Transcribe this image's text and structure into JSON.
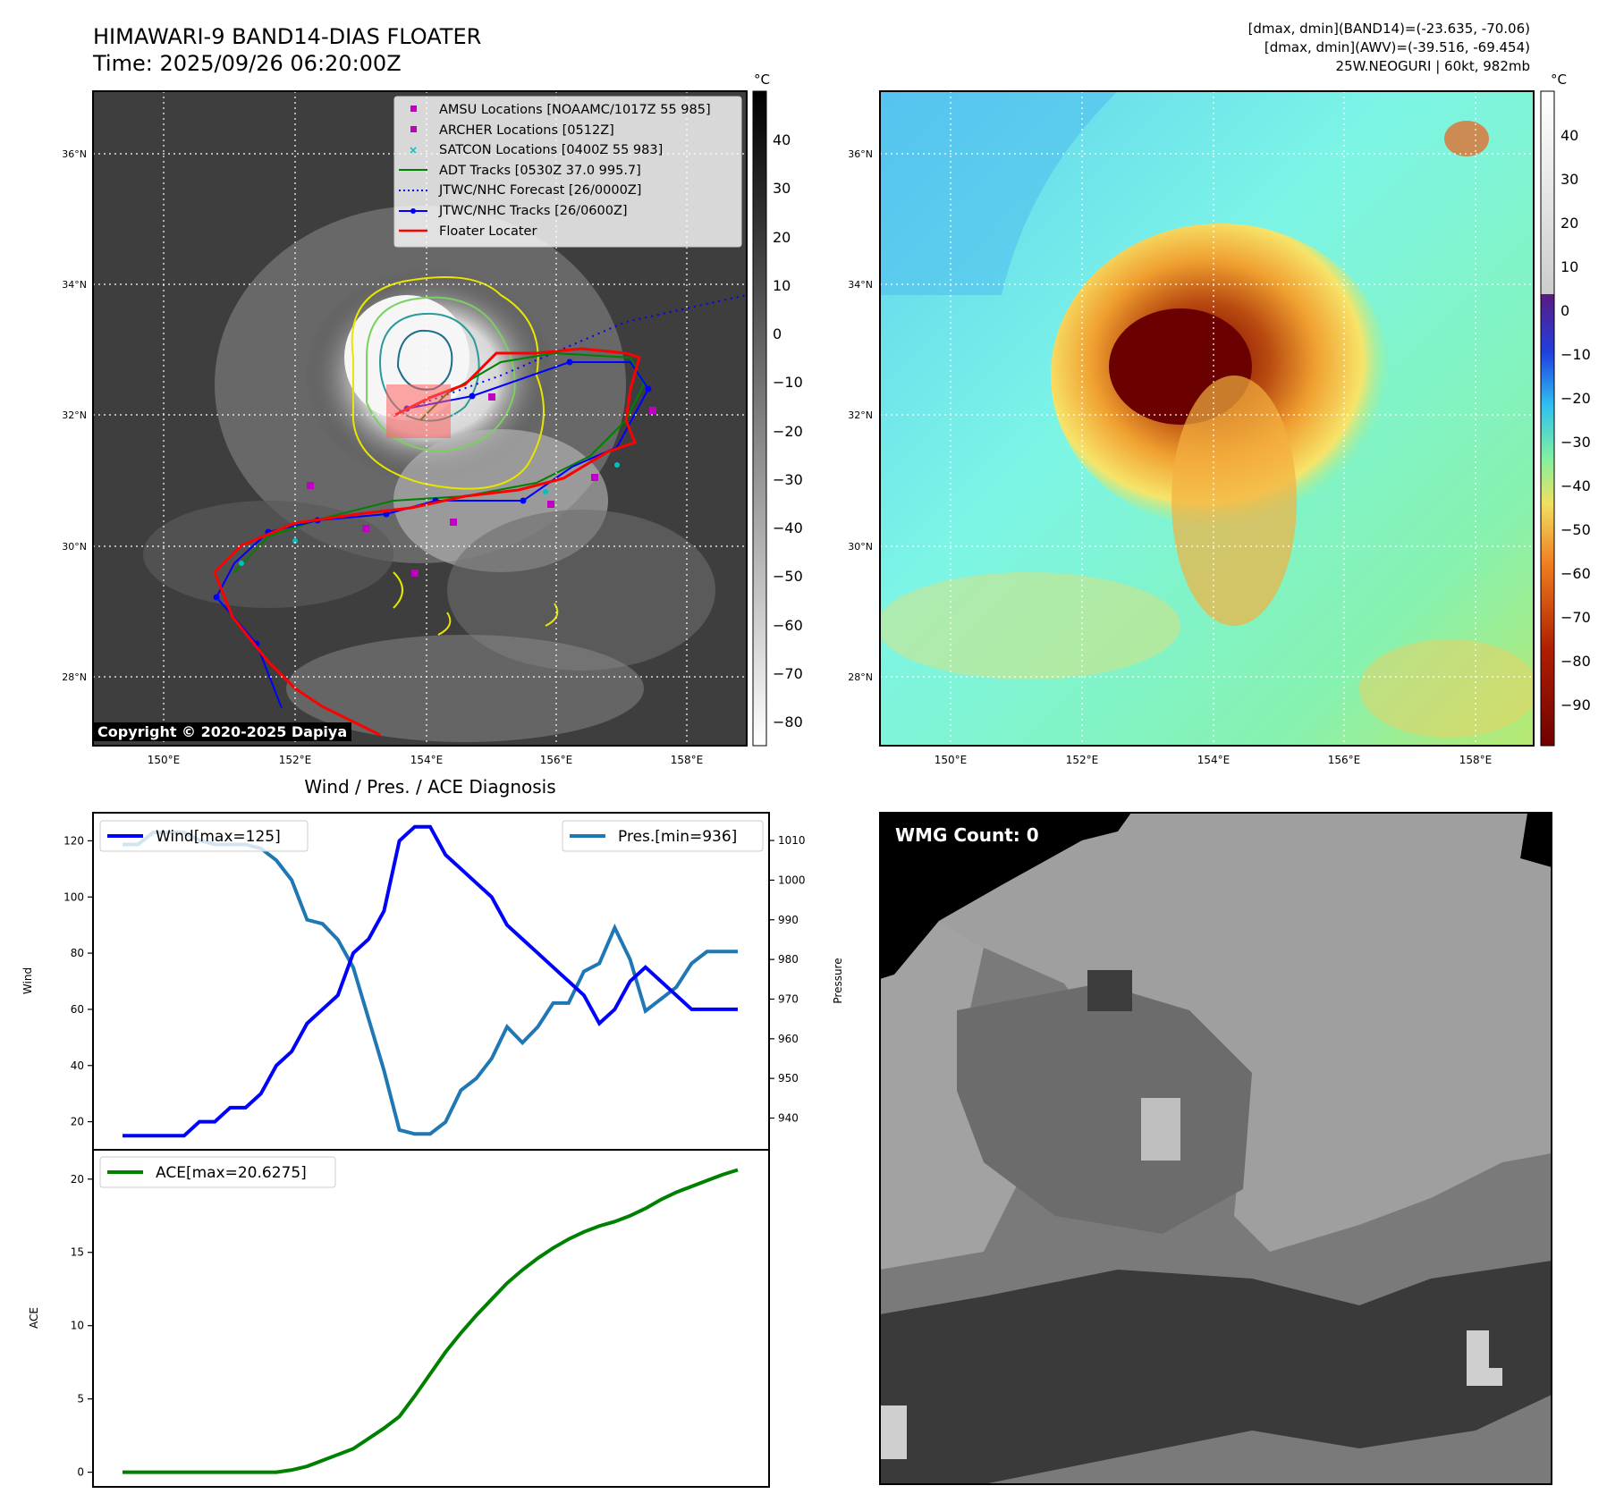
{
  "header": {
    "title_line1": "HIMAWARI-9 BAND14-DIAS FLOATER",
    "title_line2": "Time: 2025/09/26 06:20:00Z",
    "info_line1": "[dmax, dmin](BAND14)=(-23.635, -70.06)",
    "info_line2": "[dmax, dmin](AWV)=(-39.516, -69.454)",
    "info_line3": "25W.NEOGURI | 60kt, 982mb"
  },
  "copyright": "Copyright © 2020-2025 Dapiya",
  "map_axes": {
    "lat_ticks": [
      "36°N",
      "34°N",
      "32°N",
      "30°N",
      "28°N"
    ],
    "lon_ticks": [
      "150°E",
      "152°E",
      "154°E",
      "156°E",
      "158°E"
    ]
  },
  "colorbar_ir": {
    "unit": "°C",
    "ticks": [
      "40",
      "30",
      "20",
      "10",
      "0",
      "−10",
      "−20",
      "−30",
      "−40",
      "−50",
      "−60",
      "−70",
      "−80"
    ]
  },
  "colorbar_wv": {
    "unit": "°C",
    "ticks": [
      "40",
      "30",
      "20",
      "10",
      "0",
      "−10",
      "−20",
      "−30",
      "−40",
      "−50",
      "−60",
      "−70",
      "−80",
      "−90"
    ]
  },
  "legend": {
    "items": [
      {
        "label": "AMSU Locations [NOAAMC/1017Z 55 985]",
        "color": "#c000c0",
        "marker": "square"
      },
      {
        "label": "ARCHER Locations [0512Z]",
        "color": "#c000c0",
        "marker": "square"
      },
      {
        "label": "SATCON Locations [0400Z 55 983]",
        "color": "#00c0c0",
        "marker": "x"
      },
      {
        "label": "ADT Tracks [0530Z 37.0 995.7]",
        "color": "#008000",
        "marker": "line"
      },
      {
        "label": "JTWC/NHC Forecast [26/0000Z]",
        "color": "#0000ff",
        "marker": "dotted"
      },
      {
        "label": "JTWC/NHC Tracks [26/0600Z]",
        "color": "#0000ff",
        "marker": "line-dot"
      },
      {
        "label": "Floater Locater",
        "color": "#ff0000",
        "marker": "line"
      }
    ]
  },
  "diagnosis": {
    "title": "Wind / Pres. / ACE Diagnosis",
    "wind_label": "Wind",
    "pres_label": "Pressure",
    "ace_label": "ACE",
    "wind_legend": "Wind[max=125]",
    "pres_legend": "Pres.[min=936]",
    "ace_legend": "ACE[max=20.6275]",
    "wind_ticks": [
      "20",
      "40",
      "60",
      "80",
      "100",
      "120"
    ],
    "pres_ticks": [
      "940",
      "950",
      "960",
      "970",
      "980",
      "990",
      "1000",
      "1010"
    ],
    "ace_ticks": [
      "0",
      "5",
      "10",
      "15",
      "20"
    ],
    "wind_color": "#0000ff",
    "pres_color": "#1f77b4",
    "ace_color": "#008000"
  },
  "wmg_label": "WMG Count: 0",
  "chart_data": [
    {
      "type": "line",
      "title": "Wind / Pres. / ACE Diagnosis",
      "ylabel": "Wind",
      "ylim": [
        10,
        130
      ],
      "x": [
        0,
        1,
        2,
        3,
        4,
        5,
        6,
        7,
        8,
        9,
        10,
        11,
        12,
        13,
        14,
        15,
        16,
        17,
        18,
        19,
        20,
        21,
        22,
        23,
        24,
        25,
        26,
        27,
        28,
        29,
        30,
        31,
        32,
        33,
        34,
        35,
        36,
        37,
        38,
        39,
        40
      ],
      "series": [
        {
          "name": "Wind[max=125]",
          "values": [
            15,
            15,
            15,
            15,
            15,
            20,
            20,
            25,
            25,
            30,
            40,
            45,
            55,
            60,
            65,
            80,
            85,
            95,
            120,
            125,
            125,
            115,
            110,
            105,
            100,
            90,
            85,
            80,
            75,
            70,
            65,
            55,
            60,
            70,
            75,
            70,
            65,
            60,
            60,
            60,
            60
          ]
        },
        {
          "name": "Pres.[min=936]",
          "axis": "right",
          "ylim": [
            932,
            1017
          ],
          "values": [
            1009,
            1009,
            1012,
            1012,
            1012,
            1010,
            1009,
            1009,
            1009,
            1008,
            1005,
            1000,
            990,
            989,
            985,
            978,
            965,
            952,
            937,
            936,
            936,
            939,
            947,
            950,
            955,
            963,
            959,
            963,
            969,
            969,
            977,
            979,
            988,
            980,
            967,
            970,
            973,
            979,
            982,
            982,
            982
          ]
        }
      ]
    },
    {
      "type": "line",
      "ylabel": "ACE",
      "ylim": [
        -1,
        22
      ],
      "x": [
        0,
        1,
        2,
        3,
        4,
        5,
        6,
        7,
        8,
        9,
        10,
        11,
        12,
        13,
        14,
        15,
        16,
        17,
        18,
        19,
        20,
        21,
        22,
        23,
        24,
        25,
        26,
        27,
        28,
        29,
        30,
        31,
        32,
        33,
        34,
        35,
        36,
        37,
        38,
        39,
        40
      ],
      "series": [
        {
          "name": "ACE[max=20.6275]",
          "values": [
            0,
            0,
            0,
            0,
            0,
            0,
            0,
            0,
            0,
            0,
            0,
            0.15,
            0.4,
            0.8,
            1.2,
            1.6,
            2.3,
            3.0,
            3.8,
            5.2,
            6.7,
            8.2,
            9.5,
            10.7,
            11.8,
            12.9,
            13.8,
            14.6,
            15.3,
            15.9,
            16.4,
            16.8,
            17.1,
            17.5,
            18.0,
            18.6,
            19.1,
            19.5,
            19.9,
            20.3,
            20.6275
          ]
        }
      ]
    }
  ]
}
